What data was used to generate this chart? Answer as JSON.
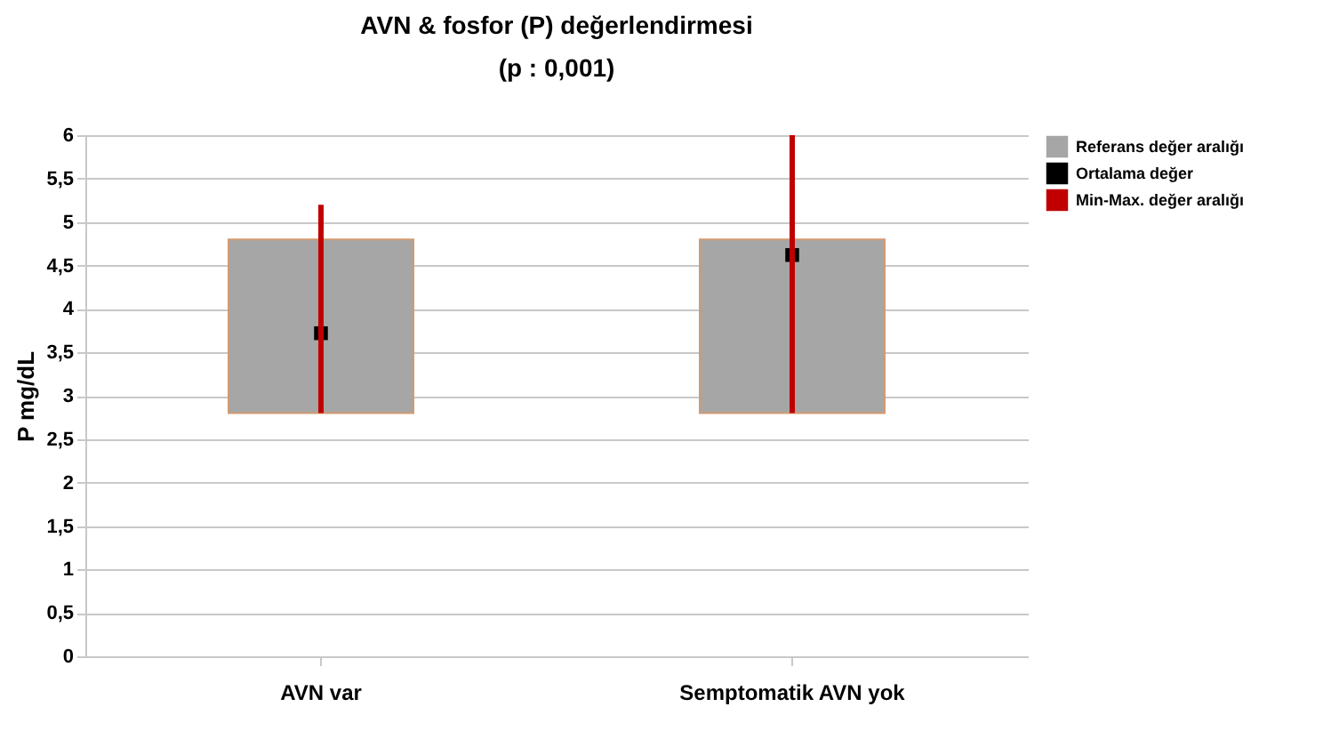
{
  "chart_data": {
    "type": "bar",
    "title": "AVN & fosfor (P) değerlendirmesi",
    "subtitle": "(p : 0,001)",
    "ylabel": "P mg/dL",
    "categories": [
      "AVN var",
      "Semptomatik AVN yok"
    ],
    "series": [
      {
        "name": "Referans değer aralığı",
        "color": "#a6a6a6",
        "base": [
          2.8,
          2.8
        ],
        "values": [
          2.0,
          2.0
        ]
      },
      {
        "name": "Ortalama değer",
        "type": "scatter",
        "marker": "square",
        "color": "#000000",
        "values": [
          3.72,
          4.62
        ]
      },
      {
        "name": "Min-Max. değer aralığı",
        "color": "#c00000",
        "base": [
          2.8,
          2.8
        ],
        "values": [
          2.4,
          3.2
        ]
      }
    ],
    "ylim": [
      0,
      6
    ],
    "yticks": [
      0,
      {
        "value": 0.5,
        "label": "0,5"
      },
      1,
      {
        "value": 1.5,
        "label": "1,5"
      },
      2,
      {
        "value": 2.5,
        "label": "2,5"
      },
      3,
      {
        "value": 3.5,
        "label": "3,5"
      },
      4,
      {
        "value": 4.5,
        "label": "4,5"
      },
      5,
      {
        "value": 5.5,
        "label": "5,5"
      },
      6
    ],
    "grid": true,
    "legend": "right"
  }
}
